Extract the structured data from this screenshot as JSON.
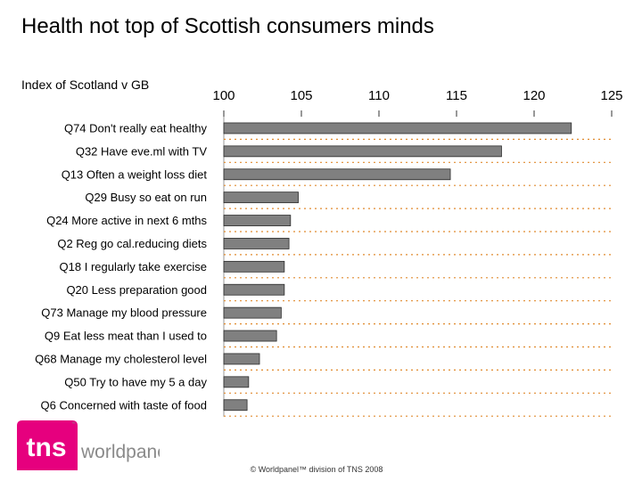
{
  "slide": {
    "title": "Health not top of Scottish consumers minds",
    "footer": "© Worldpanel™ division of TNS 2008"
  },
  "logo": {
    "mark": "tns",
    "name": "worldpanel",
    "tm": "™"
  },
  "colors": {
    "bar": "#808080",
    "bar_border": "#2b2b2b",
    "gridline": "#e08a2e",
    "logo_magenta": "#e6007e",
    "logo_grey": "#8a8a8a"
  },
  "chart_data": {
    "type": "bar",
    "orientation": "horizontal",
    "title": "Index of Scotland v GB",
    "categories": [
      "Q74 Don't really eat healthy",
      "Q32 Have eve.ml with TV",
      "Q13 Often a weight loss diet",
      "Q29 Busy so eat on run",
      "Q24 More active in next 6 mths",
      "Q2 Reg go cal.reducing diets",
      "Q18 I regularly take exercise",
      "Q20 Less preparation good",
      "Q73 Manage my blood pressure",
      "Q9 Eat less meat than I used to",
      "Q68 Manage my cholesterol level",
      "Q50 Try to have my 5 a day",
      "Q6 Concerned with taste of food"
    ],
    "values": [
      122.4,
      117.9,
      114.6,
      104.8,
      104.3,
      104.2,
      103.9,
      103.9,
      103.7,
      103.4,
      102.3,
      101.6,
      101.5
    ],
    "xlim": [
      100,
      125
    ],
    "xticks": [
      100,
      105,
      110,
      115,
      120,
      125
    ],
    "axis_position": "top",
    "grid": "dotted separators between categories"
  }
}
